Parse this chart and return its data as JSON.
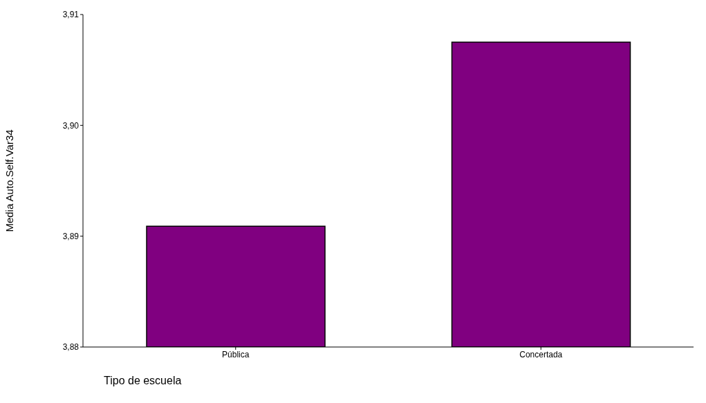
{
  "chart_data": {
    "type": "bar",
    "xlabel": "Tipo de escuela",
    "ylabel": "Media Auto.Self.Var34",
    "categories": [
      "Pública",
      "Concertada"
    ],
    "values": [
      3.8909,
      3.9075
    ],
    "color": "#800080",
    "ylim": [
      3.88,
      3.91
    ],
    "yticks": [
      {
        "value": 3.88,
        "label": "3,88"
      },
      {
        "value": 3.89,
        "label": "3,89"
      },
      {
        "value": 3.9,
        "label": "3,90"
      },
      {
        "value": 3.91,
        "label": "3,91"
      }
    ],
    "grid": false,
    "legend": false
  }
}
